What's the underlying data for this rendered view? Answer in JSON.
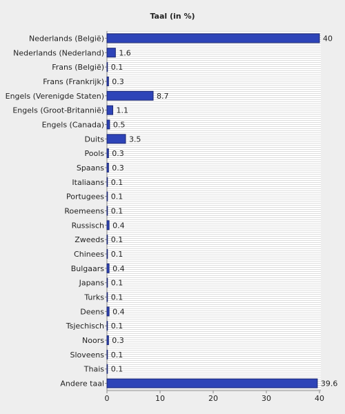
{
  "chart_data": {
    "type": "bar",
    "orientation": "horizontal",
    "title": "Taal (in %)",
    "categories": [
      "Nederlands (België)",
      "Nederlands (Nederland)",
      "Frans (België)",
      "Frans (Frankrijk)",
      "Engels (Verenigde Staten)",
      "Engels (Groot-Britannië)",
      "Engels (Canada)",
      "Duits",
      "Pools",
      "Spaans",
      "Italiaans",
      "Portugees",
      "Roemeens",
      "Russisch",
      "Zweeds",
      "Chinees",
      "Bulgaars",
      "Japans",
      "Turks",
      "Deens",
      "Tsjechisch",
      "Noors",
      "Sloveens",
      "Thais",
      "Andere taal"
    ],
    "values": [
      40,
      1.6,
      0.1,
      0.3,
      8.7,
      1.1,
      0.5,
      3.5,
      0.3,
      0.3,
      0.1,
      0.1,
      0.1,
      0.4,
      0.1,
      0.1,
      0.4,
      0.1,
      0.1,
      0.4,
      0.1,
      0.3,
      0.1,
      0.1,
      39.6
    ],
    "color": "#2e44b8",
    "xlim": [
      0,
      40
    ],
    "xticks": [
      0,
      10,
      20,
      30,
      40
    ]
  }
}
